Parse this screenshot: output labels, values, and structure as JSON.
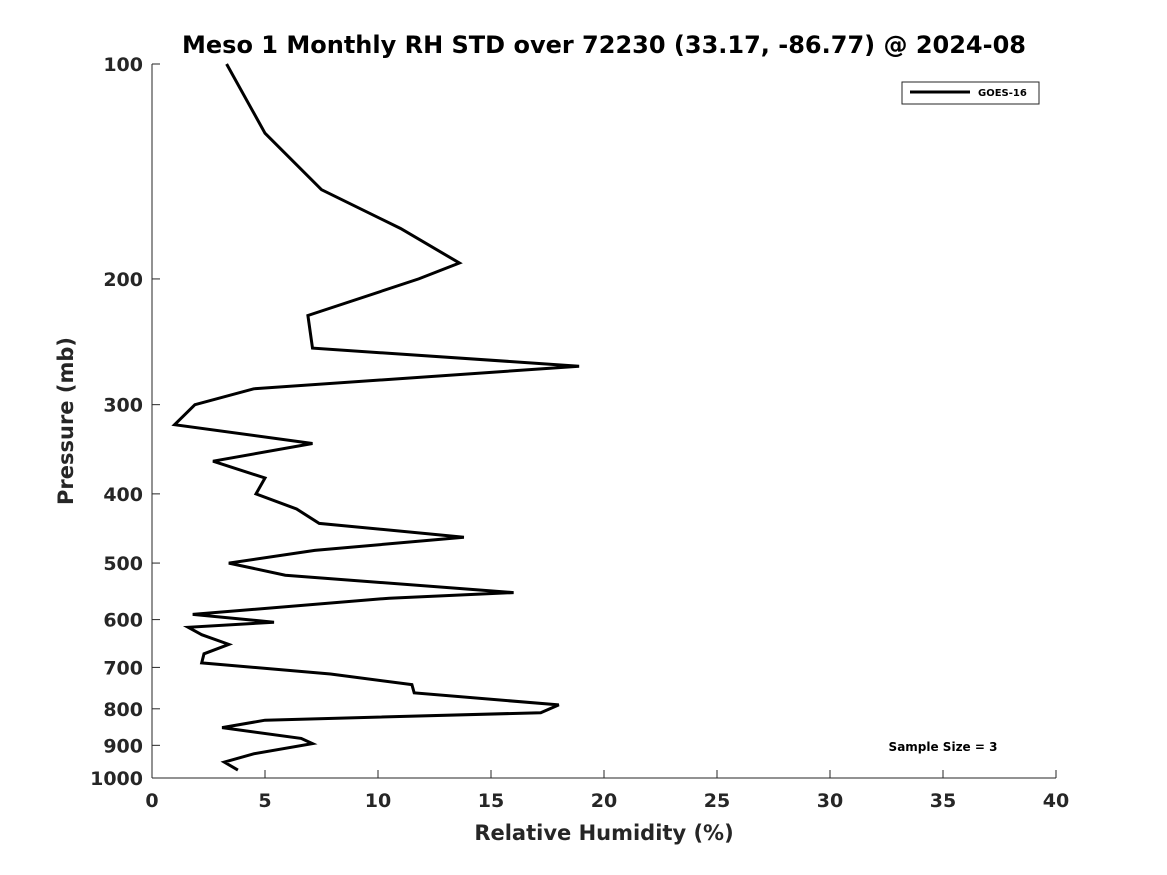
{
  "chart_data": {
    "type": "line",
    "title": "Meso 1 Monthly RH STD over 72230 (33.17, -86.77) @ 2024-08",
    "xlabel": "Relative Humidity (%)",
    "ylabel": "Pressure (mb)",
    "xlim": [
      0,
      40
    ],
    "ylim": [
      100,
      1000
    ],
    "y_scale": "log",
    "y_reversed": true,
    "grid": false,
    "legend_position": "top-right",
    "x_ticks": [
      "0",
      "5",
      "10",
      "15",
      "20",
      "25",
      "30",
      "35",
      "40"
    ],
    "y_ticks": [
      "100",
      "200",
      "300",
      "400",
      "500",
      "600",
      "700",
      "800",
      "900",
      "1000"
    ],
    "annotation": "Sample Size = 3",
    "series": [
      {
        "name": "GOES-16",
        "color": "#000000",
        "points": [
          [
            3.3,
            100
          ],
          [
            5.0,
            125
          ],
          [
            7.5,
            150
          ],
          [
            11.0,
            170
          ],
          [
            13.6,
            190
          ],
          [
            11.8,
            200
          ],
          [
            6.9,
            225
          ],
          [
            7.1,
            250
          ],
          [
            18.9,
            265
          ],
          [
            4.5,
            285
          ],
          [
            1.9,
            300
          ],
          [
            1.0,
            320
          ],
          [
            7.1,
            340
          ],
          [
            2.7,
            360
          ],
          [
            5.0,
            380
          ],
          [
            4.6,
            400
          ],
          [
            6.4,
            420
          ],
          [
            7.4,
            440
          ],
          [
            13.8,
            460
          ],
          [
            7.2,
            480
          ],
          [
            3.4,
            500
          ],
          [
            5.9,
            520
          ],
          [
            16.0,
            550
          ],
          [
            10.5,
            560
          ],
          [
            1.8,
            590
          ],
          [
            5.4,
            605
          ],
          [
            1.6,
            615
          ],
          [
            2.2,
            630
          ],
          [
            3.4,
            650
          ],
          [
            2.3,
            670
          ],
          [
            2.2,
            690
          ],
          [
            7.9,
            715
          ],
          [
            11.5,
            740
          ],
          [
            11.6,
            760
          ],
          [
            18.0,
            790
          ],
          [
            17.2,
            810
          ],
          [
            5.0,
            830
          ],
          [
            3.1,
            850
          ],
          [
            6.6,
            880
          ],
          [
            7.1,
            895
          ],
          [
            4.5,
            925
          ],
          [
            3.2,
            950
          ],
          [
            3.8,
            975
          ]
        ]
      }
    ]
  }
}
